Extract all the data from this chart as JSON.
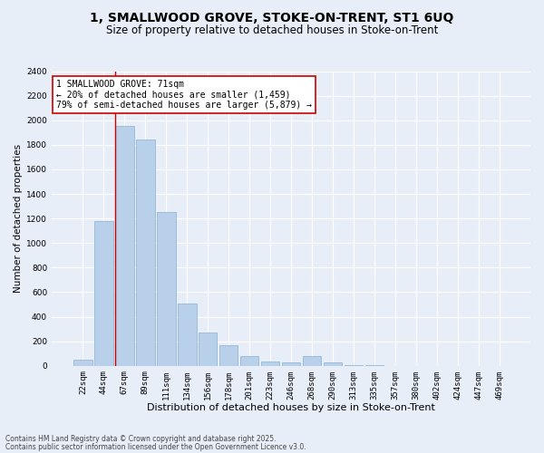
{
  "title": "1, SMALLWOOD GROVE, STOKE-ON-TRENT, ST1 6UQ",
  "subtitle": "Size of property relative to detached houses in Stoke-on-Trent",
  "xlabel": "Distribution of detached houses by size in Stoke-on-Trent",
  "ylabel": "Number of detached properties",
  "categories": [
    "22sqm",
    "44sqm",
    "67sqm",
    "89sqm",
    "111sqm",
    "134sqm",
    "156sqm",
    "178sqm",
    "201sqm",
    "223sqm",
    "246sqm",
    "268sqm",
    "290sqm",
    "313sqm",
    "335sqm",
    "357sqm",
    "380sqm",
    "402sqm",
    "424sqm",
    "447sqm",
    "469sqm"
  ],
  "values": [
    50,
    1180,
    1950,
    1840,
    1250,
    510,
    270,
    165,
    80,
    35,
    25,
    80,
    25,
    5,
    2,
    1,
    1,
    0,
    0,
    0,
    0
  ],
  "bar_color": "#b8d0ea",
  "bar_edge_color": "#8ab0d0",
  "vline_color": "#cc0000",
  "annotation_text": "1 SMALLWOOD GROVE: 71sqm\n← 20% of detached houses are smaller (1,459)\n79% of semi-detached houses are larger (5,879) →",
  "annotation_box_color": "#ffffff",
  "annotation_box_edge": "#cc0000",
  "ylim": [
    0,
    2400
  ],
  "yticks": [
    0,
    200,
    400,
    600,
    800,
    1000,
    1200,
    1400,
    1600,
    1800,
    2000,
    2200,
    2400
  ],
  "footer1": "Contains HM Land Registry data © Crown copyright and database right 2025.",
  "footer2": "Contains public sector information licensed under the Open Government Licence v3.0.",
  "bg_color": "#e8eef8",
  "plot_bg_color": "#e8eef8",
  "grid_color": "#ffffff",
  "title_fontsize": 10,
  "subtitle_fontsize": 8.5,
  "ylabel_fontsize": 7.5,
  "xlabel_fontsize": 8,
  "tick_fontsize": 6.5,
  "annot_fontsize": 7,
  "footer_fontsize": 5.5
}
